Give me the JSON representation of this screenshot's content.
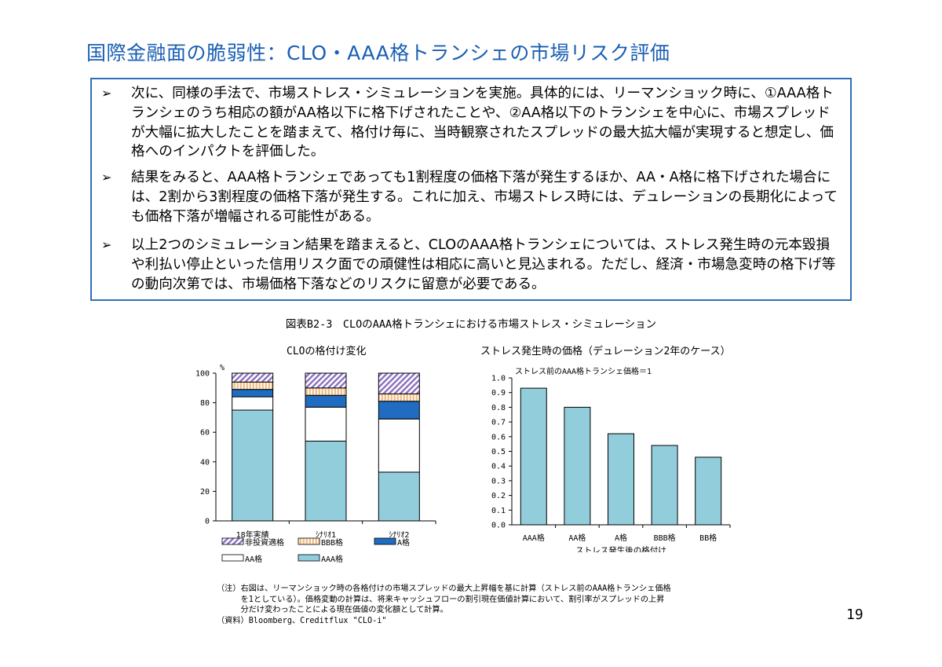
{
  "page_title": "国際金融面の脆弱性：CLO・AAA格トランシェの市場リスク評価",
  "bullets": [
    {
      "marker": "➢",
      "text": "次に、同様の手法で、市場ストレス・シミュレーションを実施。具体的には、リーマンショック時に、①AAA格トランシェのうち相応の額がAA格以下に格下げされたことや、②AA格以下のトランシェを中心に、市場スプレッドが大幅に拡大したことを踏まえて、格付け毎に、当時観察されたスプレッドの最大拡大幅が実現すると想定し、価格へのインパクトを評価した。"
    },
    {
      "marker": "➢",
      "text": "結果をみると、AAA格トランシェであっても1割程度の価格下落が発生するほか、AA・A格に格下げされた場合には、2割から3割程度の価格下落が発生する。これに加え、市場ストレス時には、デュレーションの長期化によっても価格下落が増幅される可能性がある。"
    },
    {
      "marker": "➢",
      "text": "以上2つのシミュレーション結果を踏まえると、CLOのAAA格トランシェについては、ストレス発生時の元本毀損や利払い停止といった信用リスク面での頑健性は相応に高いと見込まれる。ただし、経済・市場急変時の格下げ等の動向次第では、市場価格下落などのリスクに留意が必要である。"
    }
  ],
  "figure_title": "図表B2-3　CLOのAAA格トランシェにおける市場ストレス・シミュレーション",
  "notes": [
    "（注）右図は、リーマンショック時の各格付けの市場スプレッドの最大上昇幅を基に計算（ストレス前のAAA格トランシェ価格",
    "　　　を1としている）。価格変動の計算は、将来キャッシュフローの割引現在価値計算において、割引率がスプレッドの上昇",
    "　　　分だけ変わったことによる現在価値の変化額として計算。",
    "（資料）Bloomberg、Creditflux \"CLO-i\""
  ],
  "page_number": "19",
  "chart_data": [
    {
      "type": "bar",
      "stacked": true,
      "title": "CLOの格付け変化",
      "ylabel": "%",
      "ylim": [
        0,
        100
      ],
      "yticks": [
        "0",
        "20",
        "40",
        "60",
        "80",
        "100"
      ],
      "categories": [
        "18年実績",
        "ｼﾅﾘｵ1",
        "ｼﾅﾘｵ2"
      ],
      "series": [
        {
          "name": "AAA格",
          "values": [
            75,
            54,
            33
          ],
          "color": "#92cddc"
        },
        {
          "name": "AA格",
          "values": [
            9,
            23,
            36
          ],
          "color": "#ffffff"
        },
        {
          "name": "A格",
          "values": [
            5,
            8,
            12
          ],
          "color": "#1f6cc0"
        },
        {
          "name": "BBB格",
          "values": [
            5,
            5,
            5
          ],
          "color": "#f6cfa0"
        },
        {
          "name": "非投資適格",
          "values": [
            6,
            10,
            14
          ],
          "color": "#b9a3d6"
        }
      ],
      "legend_order": [
        "非投資適格",
        "BBB格",
        "A格",
        "AA格",
        "AAA格"
      ],
      "legend_position": "bottom"
    },
    {
      "type": "bar",
      "title": "ストレス発生時の価格（デュレーション2年のケース）",
      "annotation": "ストレス前のAAA格トランシェ価格＝1",
      "xlabel": "ストレス発生後の格付け",
      "ylim": [
        0,
        1.0
      ],
      "yticks": [
        "0.0",
        "0.1",
        "0.2",
        "0.3",
        "0.4",
        "0.5",
        "0.6",
        "0.7",
        "0.8",
        "0.9",
        "1.0"
      ],
      "categories": [
        "AAA格",
        "AA格",
        "A格",
        "BBB格",
        "BB格"
      ],
      "values": [
        0.93,
        0.8,
        0.62,
        0.54,
        0.46
      ],
      "color": "#92cddc"
    }
  ]
}
